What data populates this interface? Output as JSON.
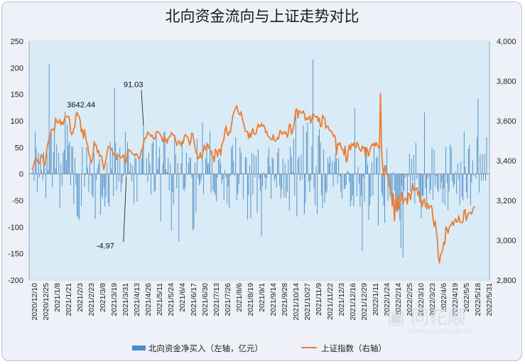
{
  "chart_data": {
    "type": "bar+line",
    "title": "北向资金流向与上证走势对比",
    "left_axis": {
      "min": -200,
      "max": 250,
      "ticks": [
        "250",
        "200",
        "150",
        "100",
        "50",
        "0",
        "-50",
        "-100",
        "-150",
        "-200"
      ]
    },
    "right_axis": {
      "min": 2800,
      "max": 4000,
      "ticks": [
        "4,000",
        "3,800",
        "3,600",
        "3,400",
        "3,200",
        "3,000",
        "2,800"
      ]
    },
    "x_labels": [
      "2020/12/10",
      "2020/12/25",
      "2021/1/8",
      "2021/1/21",
      "2021/2/3",
      "2021/2/23",
      "2021/3/8",
      "2021/3/19",
      "2021/3/31",
      "2021/4/13",
      "2021/4/26",
      "2021/5/11",
      "2021/5/24",
      "2021/6/4",
      "2021/6/17",
      "2021/6/30",
      "2021/7/13",
      "2021/7/26",
      "2021/8/6",
      "2021/8/19",
      "2021/9/1",
      "2021/9/14",
      "2021/9/28",
      "2021/10/14",
      "2021/10/27",
      "2021/11/9",
      "2021/11/22",
      "2021/12/3",
      "2021/12/16",
      "2021/12/29",
      "2022/1/11",
      "2022/1/24",
      "2022/2/14",
      "2022/2/25",
      "2022/3/10",
      "2022/3/23",
      "2022/4/6",
      "2022/4/19",
      "2022/5/5",
      "2022/5/18",
      "2022/5/31"
    ],
    "annotations": [
      {
        "text": "3642.44",
        "x_index": 42,
        "value": 3642.44
      },
      {
        "text": "91.03",
        "x_index": 104,
        "value": 91.03
      },
      {
        "text": "-4.97",
        "x_index": 88,
        "value": -4.97
      }
    ],
    "legend": [
      {
        "label": "北向资金净买入（左轴，亿元）",
        "color": "#4b8ac4"
      },
      {
        "label": "上证指数（右轴）",
        "color": "#ed7d31"
      }
    ],
    "series": [
      {
        "name": "北向资金净买入（左轴，亿元）",
        "axis": "left",
        "values": [
          2.1,
          10.1,
          -12.3,
          80.1,
          50,
          -32.8,
          40,
          -6.9,
          36,
          8,
          -12.4,
          41.4,
          12.5,
          -45.8,
          53.7,
          7.3,
          206.3,
          70,
          80,
          -25,
          41.4,
          90,
          10.5,
          55,
          0,
          40,
          -64,
          20,
          -22.7,
          40,
          46.1,
          117.5,
          25.1,
          92.7,
          54,
          60.5,
          -21.5,
          51.8,
          50,
          -56.3,
          30,
          -20.5,
          -79,
          -82.5,
          -86.5,
          0,
          -60.8,
          50.9,
          -0.5,
          -24.1,
          -2.4,
          50,
          12.5,
          -33.4,
          20,
          -3.6,
          -39.2,
          -44.4,
          40.1,
          -85,
          -11.5,
          10.1,
          20,
          28.1,
          -76.6,
          -41.2,
          -47.2,
          -25.9,
          -61.5,
          -43,
          20,
          -54.3,
          -61.4,
          60.1,
          10,
          49.8,
          -41.7,
          162.4,
          58.1,
          -30.5,
          40,
          -14.6,
          50,
          -35,
          -17.3,
          -4.6,
          36.1,
          79.4,
          -4.97,
          60,
          47.7,
          4.4,
          20,
          -13.7,
          15.6,
          -55.1,
          30.2,
          30,
          -52,
          -1.8,
          30.4,
          -1.7,
          29.9,
          52,
          91.03,
          -1,
          -2.4,
          30,
          -15.2,
          40,
          20,
          -38.8,
          56.8,
          61.2,
          -34.5,
          -31.6,
          72.4,
          8.5,
          30,
          50,
          -88.9,
          -1.1,
          20.2,
          79,
          80,
          8.9,
          3.7,
          30,
          -30.9,
          20.1,
          -106.3,
          -34.3,
          -57.6,
          68.5,
          36.2,
          -27.3,
          20.5,
          -126.9,
          0.8,
          20,
          58.6,
          -28.6,
          -32,
          -25.5,
          40.2,
          -1.7,
          20.8,
          32,
          30,
          -7.8,
          -106.6,
          -102.6,
          20.9,
          -72,
          66.3,
          -8.9,
          -21.4,
          -17.2,
          -8.8,
          96.3,
          -37.3,
          -0.1,
          30,
          60,
          20,
          20,
          80.1,
          -35.7,
          43.5,
          -31.6,
          -35,
          -39.9,
          -51.8,
          -7.3,
          26.5,
          30,
          20,
          -18,
          -9.8,
          -48.7,
          7.4,
          -6.2,
          -55.6,
          -23,
          -63.8,
          -4.3,
          50,
          54.7,
          24.5,
          -4.6,
          68.7,
          -50,
          -37.4,
          -19.5,
          50,
          40,
          1.2,
          -47.6,
          1,
          32.2,
          30.2,
          -85.5,
          -40.2,
          16.4,
          -84.2,
          40,
          -39,
          36.6,
          -5.9,
          33.7,
          -72.8,
          46.5,
          -9.2,
          -32.3,
          -117.8,
          -23.4,
          3,
          -6.4,
          -29.6,
          -8.5,
          32,
          50,
          14.2,
          -47.1,
          31.2,
          27.9,
          -13.5,
          -7.8,
          -25.1,
          40,
          49.4,
          -22.3,
          -45.7,
          -28.6,
          28.6,
          -43.8,
          20,
          -45.1,
          -33.4,
          27.1,
          -68.6,
          51.2,
          32.3,
          4.4,
          66.7,
          -40.8,
          110.7,
          -80.1,
          28.2,
          32.4,
          -13.5,
          36.2,
          -10.2,
          91.4,
          -75.7,
          -55.4,
          79.7,
          96.4,
          -14.1,
          -33.3,
          -12.2,
          53.3,
          215.6,
          -27.4,
          -58.4,
          14.6,
          -76.1,
          71.4,
          84.8,
          60,
          -39.6,
          -64.7,
          46.6,
          -53.8,
          -36,
          -32.7,
          30.6,
          20,
          33.5,
          -1.5,
          24.9,
          -24.3,
          22.5,
          37.8,
          30.5,
          -18.4,
          30,
          -5,
          -33.2,
          -46.7,
          0,
          -28.4,
          -26.9,
          -21.2,
          5.3,
          4.6,
          -15.3,
          -60.3,
          -50.5,
          -40.5,
          -60.9,
          123.9,
          2.1,
          -41.9,
          12.8,
          -17.9,
          -62.4,
          -40.7,
          -145.1,
          -5.6,
          -51.9,
          50,
          49.9,
          17.6,
          -86.4,
          -58.3,
          -43.4,
          22.8,
          -40.7,
          50,
          -0.4,
          30,
          33.7,
          -96.8,
          73.8,
          0.8,
          -35.2,
          -42.2,
          -59.5,
          -91.9,
          16.9,
          47.8,
          -50.4,
          -18,
          -41.6,
          -41.6,
          -51.9,
          3.7,
          -31.5,
          -62.6,
          -53.9,
          -73,
          -49.8,
          -86.3,
          -140.3,
          -22.8,
          -157.2,
          -32.3,
          -7.3,
          -1.4,
          -56.4,
          -4.7,
          37.3,
          -33.7,
          28.3,
          -13.1,
          35.7,
          -55.6,
          58.9,
          -9.8,
          2.2,
          -46,
          -49,
          -83.3,
          -40.6,
          -41.4,
          115.7,
          -26.5,
          -67.4,
          -9.4,
          -2.3,
          -37.2,
          -29.1,
          50,
          -48.6,
          45.2,
          -22.3,
          -4.4,
          -28.9,
          -34.3,
          0.8,
          -28.4,
          -15.3,
          -54.6,
          -27.1,
          -59.6,
          51.3,
          -17.3,
          -67.5,
          -32.9,
          55.3,
          50,
          -13.3,
          -25.4,
          -19.5,
          3.6,
          -37.9,
          20,
          -10.2,
          -58.9,
          23.1,
          -42.8,
          -50,
          80,
          13.9,
          -33,
          -45.9,
          47.4,
          54.4,
          -58.7,
          -16.7,
          25.1,
          -3.4,
          0.4,
          -8.3,
          69.7,
          141.6,
          -35.2,
          36.5,
          -13.4,
          37.3,
          -11.7,
          37.8,
          -12.9,
          68.8
        ]
      },
      {
        "name": "上证指数（右轴）",
        "axis": "right",
        "values": [
          3356.1,
          3366,
          3389,
          3407.8,
          3412.6,
          3399.1,
          3386,
          3386.7,
          3412.1,
          3431.4,
          3422.8,
          3383.2,
          3375.3,
          3417.4,
          3461.7,
          3488.5,
          3511.7,
          3522,
          3553.3,
          3560.1,
          3553,
          3550,
          3613.6,
          3600.8,
          3588.1,
          3592.1,
          3606.5,
          3579.9,
          3594.6,
          3581.2,
          3601.9,
          3624.6,
          3621.6,
          3619.3,
          3624.4,
          3610.8,
          3547.9,
          3530.1,
          3538.3,
          3562.3,
          3571.1,
          3630,
          3642.44,
          3625.3,
          3623.9,
          3601.6,
          3544.1,
          3557.2,
          3513.1,
          3555.4,
          3521.7,
          3491.9,
          3476.6,
          3432.4,
          3422.5,
          3385.4,
          3401,
          3430.1,
          3497,
          3477.8,
          3476.8,
          3442,
          3450.7,
          3421.4,
          3427.7,
          3419.8,
          3384.4,
          3354.3,
          3383.3,
          3404.2,
          3437.2,
          3470.2,
          3471.6,
          3461.4,
          3460.4,
          3446.2,
          3431.8,
          3428.5,
          3433.4,
          3406.2,
          3431.1,
          3423.6,
          3420,
          3413.6,
          3418.2,
          3429.6,
          3412.6,
          3386.8,
          3397.3,
          3444.3,
          3454.4,
          3450.7,
          3449.8,
          3440.7,
          3433,
          3432,
          3423.3,
          3435.4,
          3431.3,
          3419.1,
          3407.6,
          3423.9,
          3453.1,
          3454.2,
          3486.4,
          3513.3,
          3512.2,
          3524.1,
          3544.8,
          3535.7,
          3529.3,
          3520.9,
          3529.5,
          3512.5,
          3505.5,
          3518.3,
          3545.4,
          3545.7,
          3543.7,
          3536.2,
          3530.3,
          3514.4,
          3495.3,
          3519.3,
          3499.2,
          3508.3,
          3487.7,
          3512.5,
          3518.3,
          3523.5,
          3541.5,
          3534.4,
          3525.6,
          3526.2,
          3502.5,
          3476.5,
          3486.8,
          3499.9,
          3489.7,
          3475.9,
          3498.4,
          3487.5,
          3519.7,
          3530.6,
          3524.7,
          3521,
          3506.2,
          3478.4,
          3492.9,
          3539.3,
          3534.9,
          3502,
          3468.8,
          3441.2,
          3430,
          3410.4,
          3415.4,
          3440.3,
          3412.2,
          3431.1,
          3455.9,
          3477.8,
          3453.7,
          3458.4,
          3482.5,
          3464.7,
          3456.3,
          3445.7,
          3422.1,
          3421.4,
          3394.1,
          3457.7,
          3449.1,
          3419.7,
          3451.9,
          3458.8,
          3426.4,
          3478.5,
          3492.6,
          3508.7,
          3552.4,
          3573.2,
          3536,
          3526.6,
          3546.2,
          3542.2,
          3578,
          3613.6,
          3638.3,
          3653.6,
          3665.8,
          3676.1,
          3650.5,
          3636.1,
          3630,
          3646.1,
          3619.2,
          3591.4,
          3575.1,
          3549,
          3546.7,
          3546.7,
          3512,
          3538.9,
          3516.2,
          3545.4,
          3560.8,
          3535,
          3532,
          3534.8,
          3563.8,
          3583.9,
          3569.2,
          3573.4,
          3585.8,
          3572.7,
          3578.1,
          3568.8,
          3540.7,
          3546.7,
          3524.8,
          3520.2,
          3512.7,
          3508.1,
          3504.6,
          3530.8,
          3502.7,
          3497.9,
          3505.9,
          3516.7,
          3508.5,
          3549.1,
          3550.5,
          3532.3,
          3536.9,
          3545.3,
          3537.1,
          3544,
          3517.1,
          3536.1,
          3582,
          3582.2,
          3532.4,
          3549.9,
          3568.3,
          3611,
          3654.5,
          3659.9,
          3614.7,
          3651.8,
          3647.5,
          3637.5,
          3641,
          3650,
          3634.5,
          3603.7,
          3616,
          3606.8,
          3611.7,
          3624.7,
          3587.9,
          3611.3,
          3637.6,
          3628.1,
          3619.4,
          3620.2,
          3622.8,
          3597.1,
          3614.2,
          3571.5,
          3571.1,
          3628.2,
          3616,
          3614,
          3562.5,
          3573.4,
          3573.2,
          3558.1,
          3549.7,
          3549,
          3539.4,
          3521.3,
          3527.7,
          3514.3,
          3428.3,
          3484.8,
          3478.9,
          3490.7,
          3474.3,
          3457.2,
          3455.9,
          3429.1,
          3472.7,
          3393.6,
          3401.1,
          3453.7,
          3479,
          3453.3,
          3485.5,
          3475,
          3488.2,
          3469.9,
          3464.8,
          3491.8,
          3483.3,
          3461.8,
          3453.8,
          3446.6,
          3473.9,
          3462.3,
          3467.5,
          3420.5,
          3466.4,
          3446.8,
          3423.7,
          3453.4,
          3468.7,
          3482.6,
          3475.3,
          3489,
          3470.9,
          3490.7,
          3479.9,
          3466.5,
          3460.6,
          3737.9,
          3454.2,
          3368.9,
          3328,
          3374.2,
          3342.9,
          3337.9,
          3313.2,
          3282.8,
          3262.1,
          3238.5,
          3172.6,
          3234.9,
          3097.8,
          3200,
          3148.5,
          3232.3,
          3156.1,
          3199.6,
          3203,
          3241,
          3181.7,
          3201.4,
          3212.2,
          3207.2,
          3181.7,
          3237.4,
          3231.5,
          3203.4,
          3240.9,
          3286.6,
          3251.1,
          3250.6,
          3260.1,
          3263.5,
          3226.6,
          3245.3,
          3190.8,
          3200.9,
          3169.5,
          3202.7,
          3206.8,
          3167.1,
          3166.2,
          3185,
          3158.3,
          3169.4,
          3175.1,
          3163.1,
          3112.7,
          3069.6,
          3095.9,
          3052.8,
          3007.3,
          2914.8,
          2886.4,
          2928.5,
          2934.8,
          2950.1,
          2990,
          2978.5,
          3066.7,
          3059.7,
          3035.8,
          3060.4,
          3073.3,
          3079.5,
          3093.3,
          3073.7,
          3096.3,
          3107.1,
          3091.5,
          3096.1,
          3123.2,
          3092.5,
          3090.6,
          3088.3,
          3094.6,
          3149.5,
          3153.6,
          3099.7,
          3120.3,
          3135.8,
          3139.6,
          3139.5,
          3131.8,
          3152.3,
          3166.3,
          3169.5
        ]
      }
    ]
  }
}
